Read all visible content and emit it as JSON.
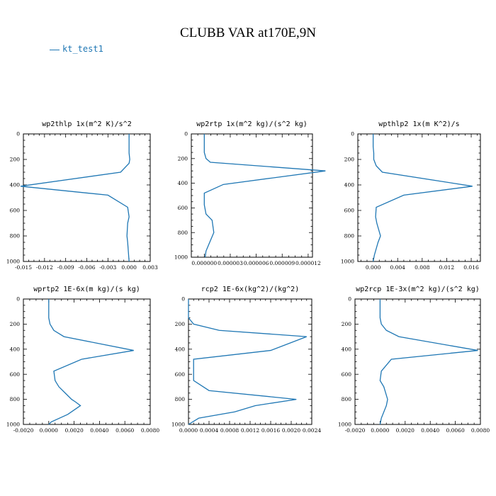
{
  "title": "CLUBB VAR at170E,9N",
  "legend": {
    "label": "kt_test1",
    "color": "#1f77b4"
  },
  "line_color": "#1f77b4",
  "chart_data": [
    {
      "type": "line",
      "title": "wp2thlp   1x(m^2 K)/s^2",
      "series": [
        {
          "name": "kt_test1",
          "x": [
            0.0,
            0.0,
            0.0,
            0.0001,
            0.0,
            -0.0012,
            -0.0154,
            -0.003,
            -0.0002,
            0.0,
            -0.0002,
            -0.0003,
            -0.0002,
            0.0
          ],
          "y": [
            0,
            100,
            150,
            200,
            230,
            300,
            410,
            480,
            575,
            650,
            700,
            800,
            850,
            1000
          ]
        }
      ],
      "xlim": [
        -0.015,
        0.003
      ],
      "xticks": [
        -0.015,
        -0.012,
        -0.009,
        -0.006,
        -0.003,
        0.0,
        0.003
      ],
      "xtick_labels": [
        "-0.015",
        "-0.012",
        "-0.009",
        "-0.006",
        "-0.003",
        "0.000",
        "0.003"
      ],
      "ylim": [
        0,
        1000
      ],
      "yticks": [
        0,
        200,
        400,
        600,
        800,
        1000
      ],
      "ytick_labels": [
        "0",
        "200",
        "400",
        "600",
        "800",
        "1000"
      ]
    },
    {
      "type": "line",
      "title": "wp2rtp   1x(m^2 kg)/(s^2 kg)",
      "series": [
        {
          "name": "kt_test1",
          "x": [
            0.0,
            0.0,
            0.0,
            2e-07,
            7e-07,
            1.4e-05,
            2.2e-06,
            0.0,
            0.0,
            2e-07,
            9e-07,
            1.1e-06,
            8e-07,
            2e-07,
            1e-07
          ],
          "y": [
            0,
            100,
            150,
            200,
            230,
            300,
            410,
            480,
            575,
            650,
            700,
            800,
            850,
            950,
            1000
          ]
        }
      ],
      "xlim": [
        -1.5e-06,
        1.25e-05
      ],
      "xticks": [
        0.0,
        3e-06,
        6e-06,
        9e-06,
        1.2e-05
      ],
      "xtick_labels": [
        "0.000000",
        "0.000003",
        "0.000006",
        "0.000009",
        "0.000012"
      ],
      "ylim": [
        0,
        1000
      ],
      "yticks": [
        0,
        200,
        400,
        600,
        800,
        1000
      ],
      "ytick_labels": [
        "0",
        "200",
        "400",
        "600",
        "800",
        "1000"
      ]
    },
    {
      "type": "line",
      "title": "wpthlp2   1x(m K^2)/s",
      "series": [
        {
          "name": "kt_test1",
          "x": [
            0.0,
            0.0,
            0.0001,
            0.0001,
            0.0005,
            0.0015,
            0.0162,
            0.005,
            0.0005,
            0.0004,
            0.0006,
            0.0012,
            0.0008,
            0.0002,
            0.0
          ],
          "y": [
            0,
            100,
            150,
            200,
            250,
            300,
            410,
            480,
            575,
            650,
            700,
            800,
            850,
            950,
            1000
          ]
        }
      ],
      "xlim": [
        -0.0025,
        0.0175
      ],
      "xticks": [
        0.0,
        0.004,
        0.008,
        0.012,
        0.016
      ],
      "xtick_labels": [
        "0.000",
        "0.004",
        "0.008",
        "0.012",
        "0.016"
      ],
      "ylim": [
        0,
        1000
      ],
      "yticks": [
        0,
        200,
        400,
        600,
        800,
        1000
      ],
      "ytick_labels": [
        "0",
        "200",
        "400",
        "600",
        "800",
        "1000"
      ]
    },
    {
      "type": "line",
      "title": "wprtp2   1E-6x(m kg)/(s kg)",
      "series": [
        {
          "name": "kt_test1",
          "x": [
            0.0,
            0.0,
            0.0,
            0.0001,
            0.0004,
            0.0012,
            0.0067,
            0.0026,
            0.0004,
            0.0005,
            0.0008,
            0.0013,
            0.0018,
            0.0021,
            0.0025,
            0.0015,
            0.0002,
            0.0
          ],
          "y": [
            0,
            100,
            150,
            200,
            250,
            300,
            410,
            480,
            575,
            650,
            700,
            750,
            800,
            820,
            850,
            920,
            980,
            1000
          ]
        }
      ],
      "xlim": [
        -0.002,
        0.008
      ],
      "xticks": [
        -0.002,
        0.0,
        0.002,
        0.004,
        0.006,
        0.008
      ],
      "xtick_labels": [
        "-0.0020",
        "0.0000",
        "0.0020",
        "0.0040",
        "0.0060",
        "0.0080"
      ],
      "ylim": [
        0,
        1000
      ],
      "yticks": [
        0,
        200,
        400,
        600,
        800,
        1000
      ],
      "ytick_labels": [
        "0",
        "200",
        "400",
        "600",
        "800",
        "1000"
      ]
    },
    {
      "type": "line",
      "title": "rcp2   1E-6x(kg^2)/(kg^2)",
      "series": [
        {
          "name": "kt_test1",
          "x": [
            0.0,
            0.0,
            0.0,
            0.0001,
            0.0006,
            0.0023,
            0.0016,
            0.0001,
            0.0001,
            0.0001,
            0.0004,
            0.0021,
            0.0013,
            0.0009,
            0.0002,
            0.0
          ],
          "y": [
            0,
            100,
            150,
            200,
            250,
            300,
            410,
            480,
            575,
            650,
            730,
            800,
            850,
            900,
            950,
            1000
          ]
        }
      ],
      "xlim": [
        0.0,
        0.0024
      ],
      "xticks": [
        0.0,
        0.0004,
        0.0008,
        0.0012,
        0.0016,
        0.002,
        0.0024
      ],
      "xtick_labels": [
        "0.0000",
        "0.0004",
        "0.0008",
        "0.0012",
        "0.0016",
        "0.0020",
        "0.0024"
      ],
      "ylim": [
        0,
        1000
      ],
      "yticks": [
        0,
        200,
        400,
        600,
        800,
        1000
      ],
      "ytick_labels": [
        "0",
        "200",
        "400",
        "600",
        "800",
        "1000"
      ]
    },
    {
      "type": "line",
      "title": "wp2rcp   1E-3x(m^2 kg)/(s^2 kg)",
      "series": [
        {
          "name": "kt_test1",
          "x": [
            0.0,
            0.0,
            0.0,
            0.0001,
            0.0005,
            0.0015,
            0.0078,
            0.0009,
            0.0001,
            0.0,
            0.0003,
            0.0006,
            0.0005,
            0.0001,
            0.0
          ],
          "y": [
            0,
            100,
            150,
            200,
            250,
            300,
            410,
            480,
            575,
            650,
            700,
            800,
            850,
            950,
            1000
          ]
        }
      ],
      "xlim": [
        -0.002,
        0.008
      ],
      "xticks": [
        -0.002,
        0.0,
        0.002,
        0.004,
        0.006,
        0.008
      ],
      "xtick_labels": [
        "-0.0020",
        "0.0000",
        "0.0020",
        "0.0040",
        "0.0060",
        "0.0080"
      ],
      "ylim": [
        0,
        1000
      ],
      "yticks": [
        0,
        200,
        400,
        600,
        800,
        1000
      ],
      "ytick_labels": [
        "0",
        "200",
        "400",
        "600",
        "800",
        "1000"
      ]
    }
  ]
}
